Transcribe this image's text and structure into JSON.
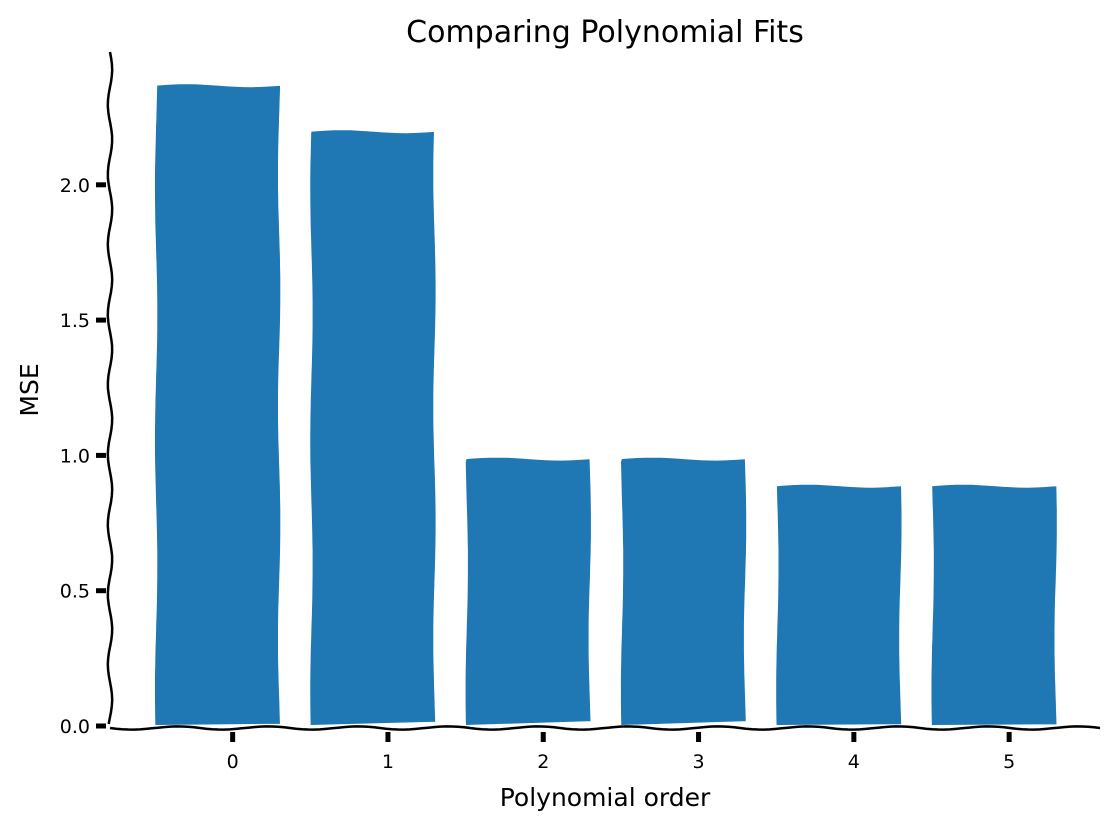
{
  "chart_data": {
    "type": "bar",
    "title": "Comparing Polynomial Fits",
    "xlabel": "Polynomial order",
    "ylabel": "MSE",
    "categories": [
      "0",
      "1",
      "2",
      "3",
      "4",
      "5"
    ],
    "values": [
      2.37,
      2.2,
      0.99,
      0.99,
      0.89,
      0.89
    ],
    "ylim": [
      0,
      2.45
    ],
    "yticks": [
      0.0,
      0.5,
      1.0,
      1.5,
      2.0
    ],
    "ytick_labels": [
      "0.0",
      "0.5",
      "1.0",
      "1.5",
      "2.0"
    ],
    "bar_color": "#1f77b4",
    "grid": false,
    "style": "xkcd"
  }
}
